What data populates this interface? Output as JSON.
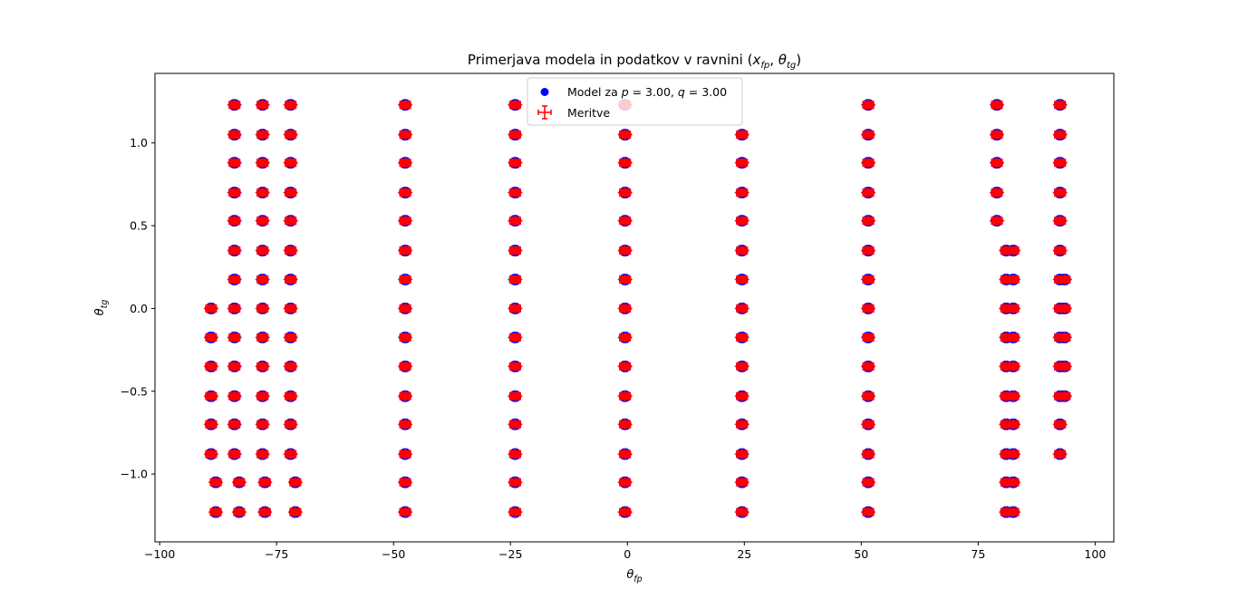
{
  "chart_data": {
    "type": "scatter",
    "title": "Primerjava modela in podatkov v ravnini (x_fp, θ_tg)",
    "xlabel": "θ_fp",
    "ylabel": "θ_tg",
    "xlim": [
      -101,
      104
    ],
    "ylim": [
      -1.41,
      1.42
    ],
    "x_ticks": [
      -100,
      -75,
      -50,
      -25,
      0,
      25,
      50,
      75,
      100
    ],
    "x_tick_labels": [
      "−100",
      "−75",
      "−50",
      "−25",
      "0",
      "25",
      "50",
      "75",
      "100"
    ],
    "y_ticks": [
      -1.0,
      -0.5,
      0.0,
      0.5,
      1.0
    ],
    "y_tick_labels": [
      "−1.0",
      "−0.5",
      "0.0",
      "0.5",
      "1.0"
    ],
    "grid": false,
    "legend_position": "top-center",
    "series": [
      {
        "name": "Model za p = 3.00, q = 3.00",
        "marker": "circle",
        "color": "#0000ff"
      },
      {
        "name": "Meritve",
        "marker": "errorbar",
        "color": "#ff0000"
      }
    ],
    "y_levels": [
      1.23,
      1.05,
      0.88,
      0.7,
      0.53,
      0.35,
      0.175,
      0.0,
      -0.175,
      -0.35,
      -0.53,
      -0.7,
      -0.88,
      -1.05,
      -1.23
    ],
    "columns": [
      {
        "x": -89.0,
        "y_range": [
          -0.88,
          0.0
        ]
      },
      {
        "x": -88.0,
        "y_range": [
          -1.23,
          -1.05
        ]
      },
      {
        "x": -84.0,
        "y_range": [
          -0.88,
          1.23
        ]
      },
      {
        "x": -83.0,
        "y_range": [
          -1.23,
          -1.05
        ]
      },
      {
        "x": -78.0,
        "y_range": [
          -0.88,
          1.23
        ]
      },
      {
        "x": -77.5,
        "y_range": [
          -1.23,
          -1.05
        ]
      },
      {
        "x": -72.0,
        "y_range": [
          -0.88,
          1.23
        ]
      },
      {
        "x": -71.0,
        "y_range": [
          -1.23,
          -1.05
        ]
      },
      {
        "x": -47.5,
        "y_range": [
          -1.23,
          1.23
        ]
      },
      {
        "x": -24.0,
        "y_range": [
          -1.23,
          1.23
        ]
      },
      {
        "x": -0.5,
        "y_range": [
          -1.23,
          1.23
        ]
      },
      {
        "x": 24.5,
        "y_range": [
          -1.23,
          1.05
        ]
      },
      {
        "x": 51.5,
        "y_range": [
          -1.23,
          1.23
        ]
      },
      {
        "x": 79.0,
        "y_range": [
          0.53,
          1.23
        ]
      },
      {
        "x": 81.0,
        "y_range": [
          -1.23,
          0.35
        ]
      },
      {
        "x": 82.5,
        "y_range": [
          -1.23,
          0.35
        ]
      },
      {
        "x": 92.5,
        "y_range": [
          -0.88,
          1.23
        ]
      },
      {
        "x": 93.5,
        "y_range": [
          -0.53,
          0.175
        ]
      }
    ]
  }
}
